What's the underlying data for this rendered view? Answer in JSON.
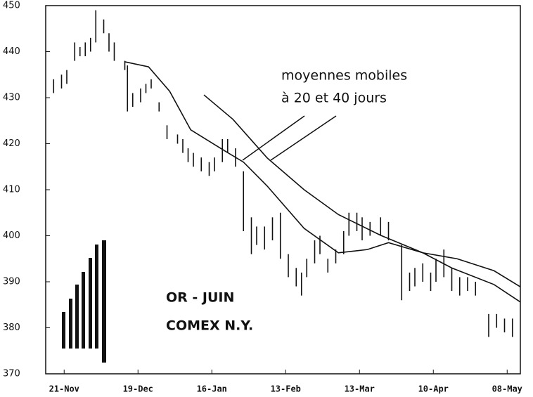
{
  "chart_data": {
    "type": "hlc-bars",
    "annotations": [
      "moyennes mobiles",
      "à 20 et 40 jours",
      "OR - JUIN",
      "COMEX N.Y."
    ],
    "color": "#111",
    "x": [
      -4,
      -1,
      1,
      4,
      6,
      8,
      10,
      12,
      15,
      17,
      19,
      23,
      24,
      26,
      29,
      31,
      33,
      36,
      39,
      43,
      45,
      47,
      49,
      52,
      55,
      57,
      60,
      62,
      65,
      68,
      71,
      73,
      76,
      79,
      82,
      85,
      88,
      90,
      92,
      95,
      97,
      100,
      103,
      106,
      108,
      111,
      113,
      116,
      120,
      123,
      128,
      131,
      133,
      136,
      139,
      141,
      144,
      147,
      150,
      153,
      156,
      161,
      164,
      167,
      170
    ],
    "low": [
      431,
      432,
      433,
      438,
      439,
      439,
      440,
      442,
      444,
      440,
      438,
      436,
      427,
      428,
      429,
      431,
      432,
      427,
      421,
      420,
      418,
      416,
      415,
      414,
      413,
      414,
      416,
      418,
      415,
      401,
      396,
      398,
      397,
      399,
      395,
      391,
      389,
      387,
      391,
      394,
      396,
      392,
      394,
      396,
      400,
      401,
      399,
      400,
      400,
      399,
      386,
      388,
      389,
      390,
      388,
      390,
      391,
      388,
      387,
      388,
      387,
      378,
      380,
      379,
      378
    ],
    "high": [
      434,
      435,
      436,
      442,
      441,
      442,
      443,
      449,
      447,
      444,
      442,
      438,
      437,
      431,
      432,
      433,
      434,
      429,
      424,
      422,
      421,
      419,
      418,
      417,
      416,
      417,
      421,
      421,
      419,
      414,
      404,
      402,
      402,
      404,
      405,
      396,
      393,
      392,
      395,
      399,
      400,
      395,
      397,
      401,
      405,
      405,
      404,
      403,
      404,
      403,
      398,
      392,
      393,
      394,
      392,
      395,
      397,
      393,
      391,
      391,
      390,
      383,
      383,
      382,
      382
    ],
    "lines": [
      {
        "color": "#111",
        "x": [
          23,
          32,
          40,
          48,
          61,
          68,
          77,
          91,
          104,
          115,
          123,
          136,
          147,
          163,
          173
        ],
        "values": [
          437.8,
          436.7,
          431.4,
          423,
          418.4,
          416,
          410.8,
          401.6,
          396.3,
          397,
          398.5,
          396.3,
          393,
          389.4,
          385.6
        ]
      },
      {
        "color": "#111",
        "x": [
          53,
          64,
          77,
          91,
          104,
          120,
          136,
          149,
          163,
          173
        ],
        "values": [
          430.6,
          425.3,
          416.9,
          410,
          404.6,
          400.1,
          396.3,
          395,
          392.4,
          388.9
        ]
      }
    ],
    "xlim": [
      -7,
      173
    ],
    "xticks": [
      {
        "value": 0,
        "label": "21-Nov"
      },
      {
        "value": 28,
        "label": "19-Dec"
      },
      {
        "value": 56,
        "label": "16-Jan"
      },
      {
        "value": 84,
        "label": "13-Feb"
      },
      {
        "value": 112,
        "label": "13-Mar"
      },
      {
        "value": 140,
        "label": "10-Apr"
      },
      {
        "value": 168,
        "label": "08-May"
      }
    ],
    "ylim": [
      370,
      450
    ],
    "yticks": [
      370,
      380,
      390,
      400,
      410,
      420,
      430,
      440,
      450
    ]
  }
}
